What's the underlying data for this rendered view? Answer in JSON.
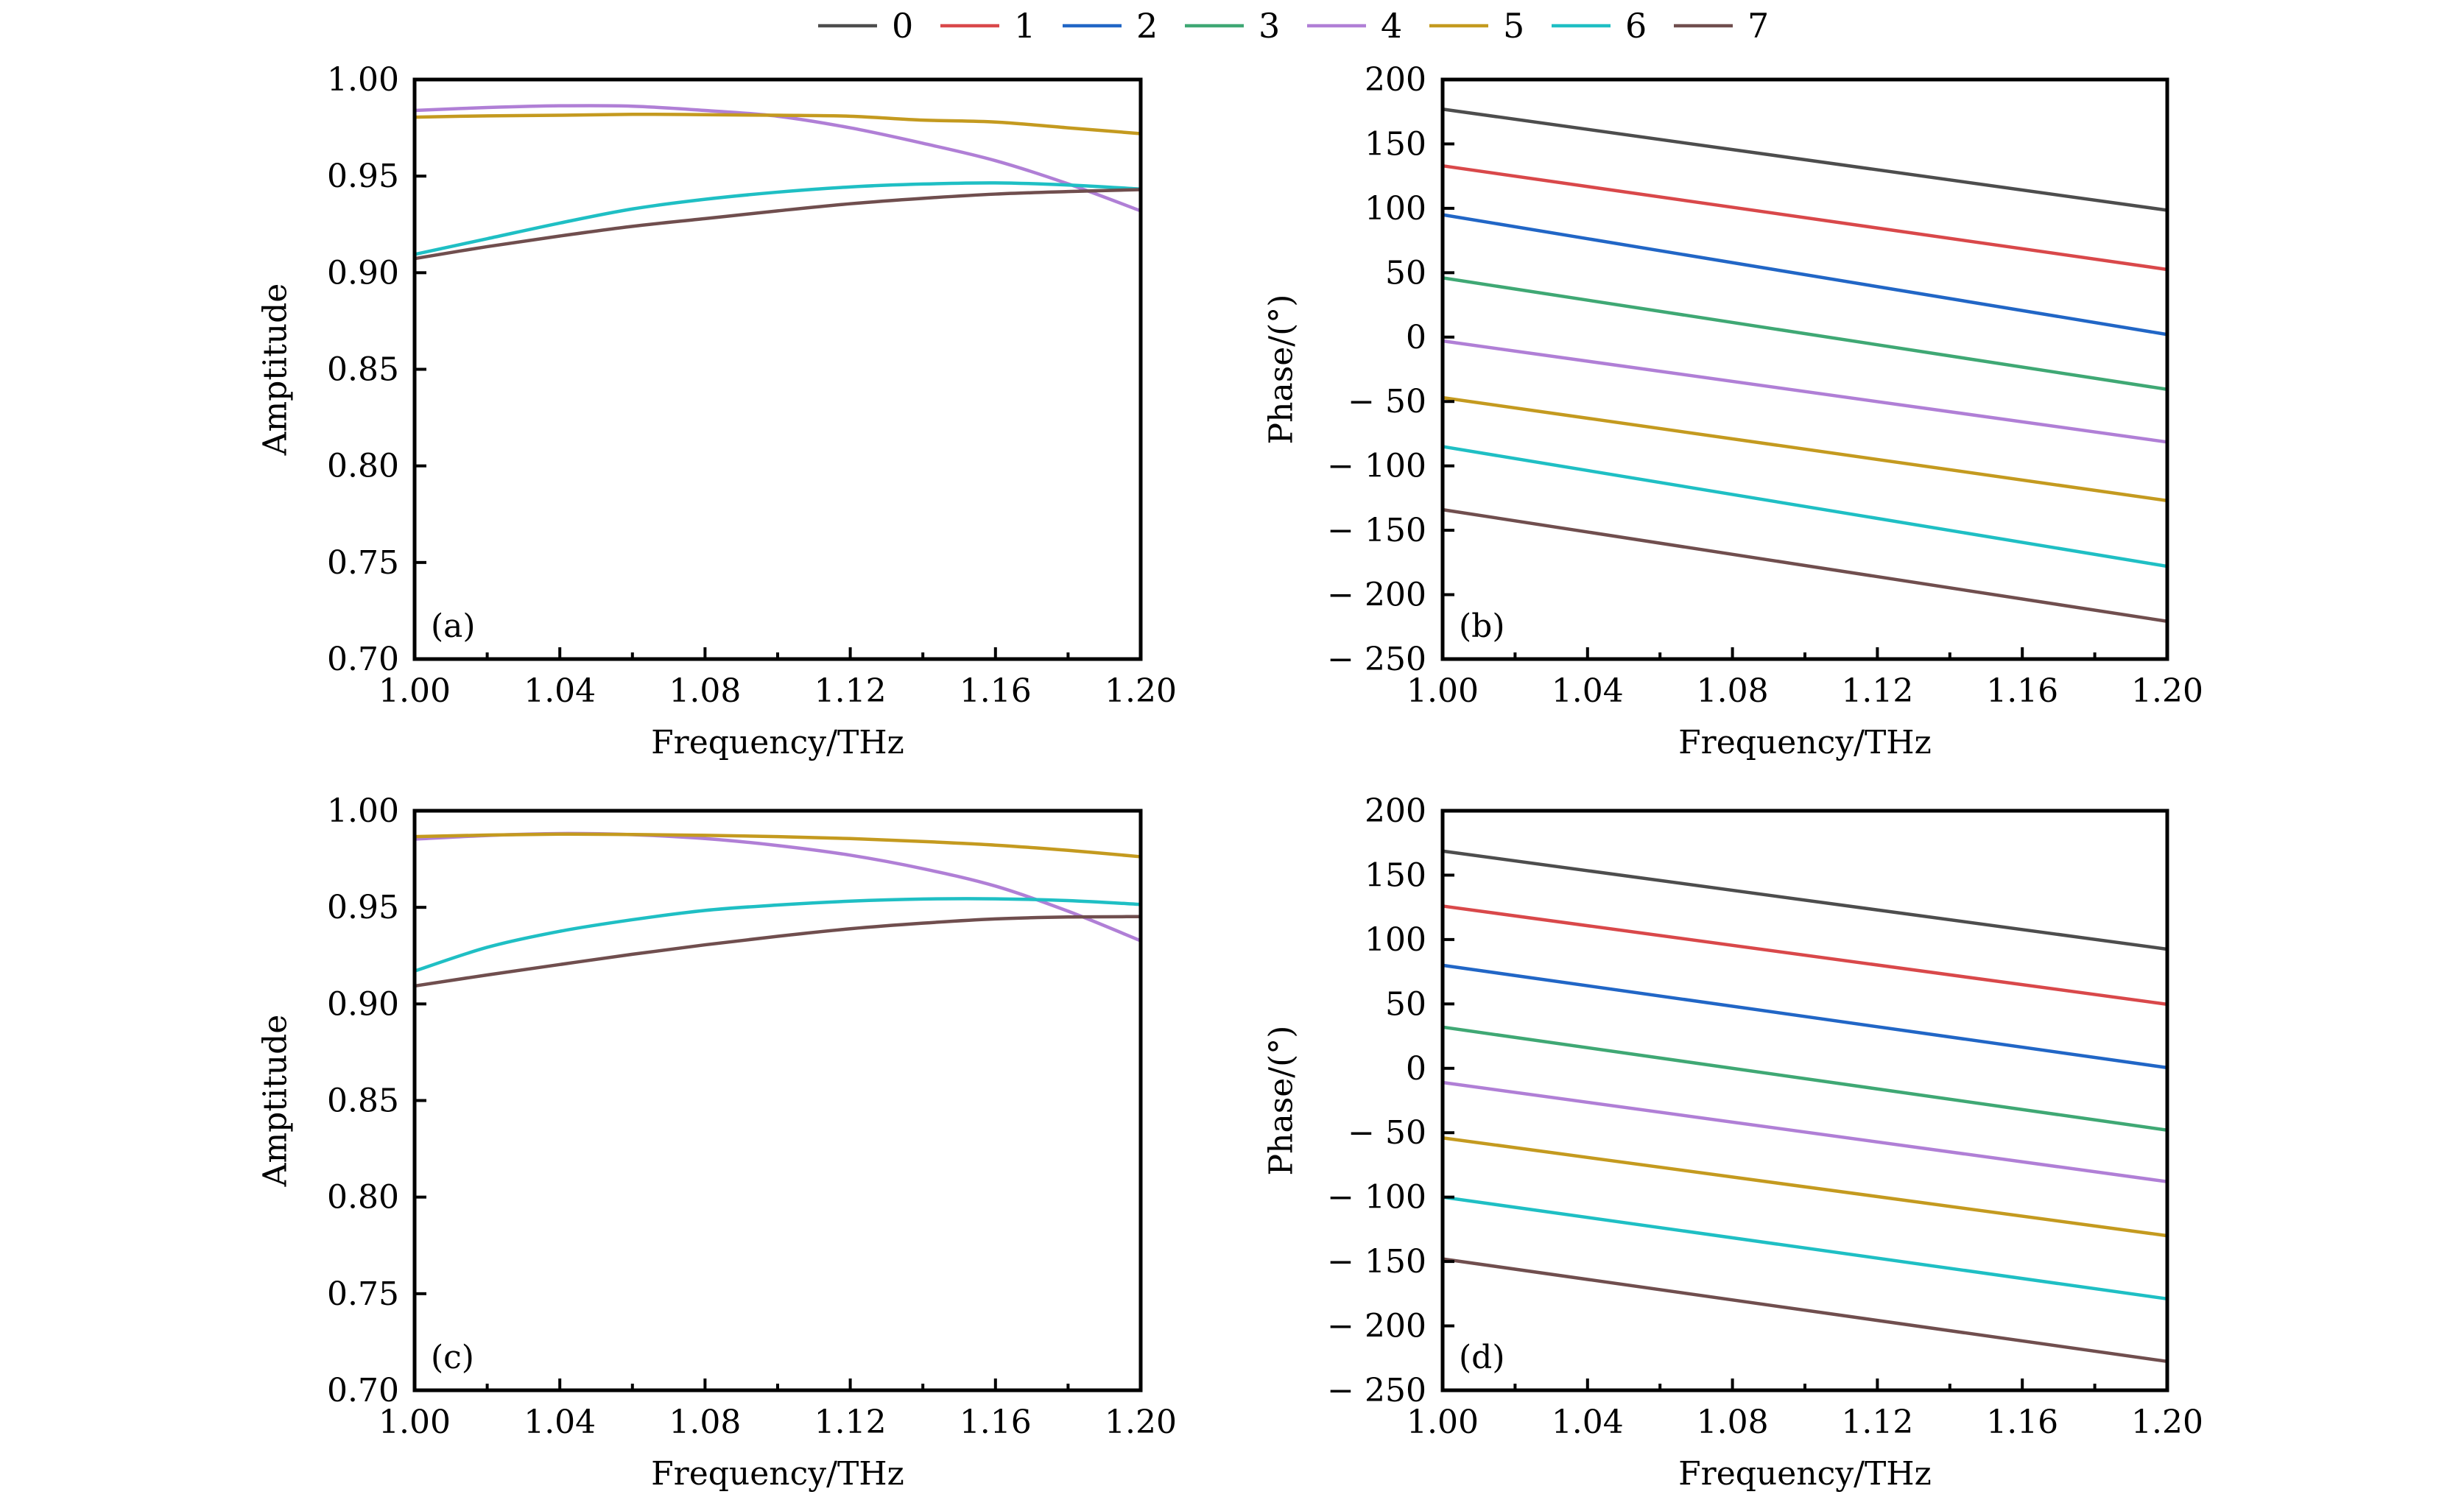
{
  "legend": {
    "items": [
      {
        "label": "0",
        "color": "#4d4d4d"
      },
      {
        "label": "1",
        "color": "#d9484a"
      },
      {
        "label": "2",
        "color": "#2166c6"
      },
      {
        "label": "3",
        "color": "#3fa874"
      },
      {
        "label": "4",
        "color": "#b07fd6"
      },
      {
        "label": "5",
        "color": "#c49a1f"
      },
      {
        "label": "6",
        "color": "#1fbfc4"
      },
      {
        "label": "7",
        "color": "#704e4e"
      }
    ],
    "placement": "top-center"
  },
  "chart_data": [
    {
      "id": "a",
      "panel_label": "(a)",
      "type": "line",
      "xlabel": "Frequency/THz",
      "ylabel": "Amptitude",
      "xlim": [
        1.0,
        1.2
      ],
      "ylim": [
        0.7,
        1.0
      ],
      "xticks": [
        "1.00",
        "1.04",
        "1.08",
        "1.12",
        "1.16",
        "1.20"
      ],
      "xtick_values": [
        1.0,
        1.04,
        1.08,
        1.12,
        1.16,
        1.2
      ],
      "x_minor_ticks": [
        1.02,
        1.06,
        1.1,
        1.14,
        1.18
      ],
      "yticks": [
        "0.70",
        "0.75",
        "0.80",
        "0.85",
        "0.90",
        "0.95",
        "1.00"
      ],
      "ytick_values": [
        0.7,
        0.75,
        0.8,
        0.85,
        0.9,
        0.95,
        1.0
      ],
      "grid": false,
      "x": [
        1.0,
        1.02,
        1.04,
        1.06,
        1.08,
        1.1,
        1.12,
        1.14,
        1.16,
        1.18,
        1.2
      ],
      "series": [
        {
          "name": "4",
          "values": [
            0.984,
            0.9855,
            0.9864,
            0.9862,
            0.984,
            0.981,
            0.975,
            0.967,
            0.958,
            0.946,
            0.932
          ]
        },
        {
          "name": "5",
          "values": [
            0.9805,
            0.9812,
            0.9815,
            0.982,
            0.9818,
            0.9815,
            0.981,
            0.979,
            0.978,
            0.975,
            0.972
          ]
        },
        {
          "name": "6",
          "values": [
            0.9095,
            0.9176,
            0.9257,
            0.933,
            0.938,
            0.9417,
            0.9444,
            0.9459,
            0.9465,
            0.9454,
            0.9433
          ]
        },
        {
          "name": "7",
          "values": [
            0.9073,
            0.9135,
            0.919,
            0.924,
            0.928,
            0.932,
            0.9357,
            0.9385,
            0.9407,
            0.942,
            0.943
          ]
        }
      ]
    },
    {
      "id": "b",
      "panel_label": "(b)",
      "type": "line",
      "xlabel": "Frequency/THz",
      "ylabel": "Phase/(°)",
      "xlim": [
        1.0,
        1.2
      ],
      "ylim": [
        -250,
        200
      ],
      "xticks": [
        "1.00",
        "1.04",
        "1.08",
        "1.12",
        "1.16",
        "1.20"
      ],
      "xtick_values": [
        1.0,
        1.04,
        1.08,
        1.12,
        1.16,
        1.2
      ],
      "x_minor_ticks": [
        1.02,
        1.06,
        1.1,
        1.14,
        1.18
      ],
      "yticks": [
        "− 250",
        "− 200",
        "− 150",
        "− 100",
        "− 50",
        "0",
        "50",
        "100",
        "150",
        "200"
      ],
      "ytick_values": [
        -250,
        -200,
        -150,
        -100,
        -50,
        0,
        50,
        100,
        150,
        200
      ],
      "grid": false,
      "x": [
        1.0,
        1.2
      ],
      "series": [
        {
          "name": "0",
          "values": [
            177,
            98.5
          ]
        },
        {
          "name": "1",
          "values": [
            133,
            52.5
          ]
        },
        {
          "name": "2",
          "values": [
            95,
            2
          ]
        },
        {
          "name": "3",
          "values": [
            46,
            -40.6
          ]
        },
        {
          "name": "4",
          "values": [
            -3,
            -81.5
          ]
        },
        {
          "name": "5",
          "values": [
            -47,
            -127
          ]
        },
        {
          "name": "6",
          "values": [
            -85,
            -178
          ]
        },
        {
          "name": "7",
          "values": [
            -134,
            -220.7
          ]
        }
      ]
    },
    {
      "id": "c",
      "panel_label": "(c)",
      "type": "line",
      "xlabel": "Frequency/THz",
      "ylabel": "Amptitude",
      "xlim": [
        1.0,
        1.2
      ],
      "ylim": [
        0.7,
        1.0
      ],
      "xticks": [
        "1.00",
        "1.04",
        "1.08",
        "1.12",
        "1.16",
        "1.20"
      ],
      "xtick_values": [
        1.0,
        1.04,
        1.08,
        1.12,
        1.16,
        1.2
      ],
      "x_minor_ticks": [
        1.02,
        1.06,
        1.1,
        1.14,
        1.18
      ],
      "yticks": [
        "0.70",
        "0.75",
        "0.80",
        "0.85",
        "0.90",
        "0.95",
        "1.00"
      ],
      "ytick_values": [
        0.7,
        0.75,
        0.8,
        0.85,
        0.9,
        0.95,
        1.0
      ],
      "grid": false,
      "x": [
        1.0,
        1.02,
        1.04,
        1.06,
        1.08,
        1.1,
        1.12,
        1.14,
        1.16,
        1.18,
        1.2
      ],
      "series": [
        {
          "name": "4",
          "values": [
            0.9853,
            0.9872,
            0.9882,
            0.9876,
            0.9856,
            0.982,
            0.977,
            0.97,
            0.961,
            0.948,
            0.9327
          ]
        },
        {
          "name": "5",
          "values": [
            0.9866,
            0.9874,
            0.9879,
            0.9877,
            0.9873,
            0.9866,
            0.9856,
            0.9841,
            0.9822,
            0.9795,
            0.9762
          ]
        },
        {
          "name": "6",
          "values": [
            0.917,
            0.9293,
            0.9376,
            0.9436,
            0.9484,
            0.9512,
            0.9532,
            0.9543,
            0.9544,
            0.9535,
            0.9515
          ]
        },
        {
          "name": "7",
          "values": [
            0.9093,
            0.915,
            0.9204,
            0.9257,
            0.9306,
            0.935,
            0.9389,
            0.9418,
            0.944,
            0.945,
            0.9452
          ]
        }
      ]
    },
    {
      "id": "d",
      "panel_label": "(d)",
      "type": "line",
      "xlabel": "Frequency/THz",
      "ylabel": "Phase/(°)",
      "xlim": [
        1.0,
        1.2
      ],
      "ylim": [
        -250,
        200
      ],
      "xticks": [
        "1.00",
        "1.04",
        "1.08",
        "1.12",
        "1.16",
        "1.20"
      ],
      "xtick_values": [
        1.0,
        1.04,
        1.08,
        1.12,
        1.16,
        1.2
      ],
      "x_minor_ticks": [
        1.02,
        1.06,
        1.1,
        1.14,
        1.18
      ],
      "yticks": [
        "− 250",
        "− 200",
        "− 150",
        "− 100",
        "− 50",
        "0",
        "50",
        "100",
        "150",
        "200"
      ],
      "ytick_values": [
        -250,
        -200,
        -150,
        -100,
        -50,
        0,
        50,
        100,
        150,
        200
      ],
      "grid": false,
      "x": [
        1.0,
        1.2
      ],
      "series": [
        {
          "name": "0",
          "values": [
            168.7,
            92.5
          ]
        },
        {
          "name": "1",
          "values": [
            126,
            49.7
          ]
        },
        {
          "name": "2",
          "values": [
            80,
            0.5
          ]
        },
        {
          "name": "3",
          "values": [
            32,
            -48
          ]
        },
        {
          "name": "4",
          "values": [
            -11,
            -88
          ]
        },
        {
          "name": "5",
          "values": [
            -54,
            -130
          ]
        },
        {
          "name": "6",
          "values": [
            -100,
            -179
          ]
        },
        {
          "name": "7",
          "values": [
            -148,
            -227.6
          ]
        }
      ]
    }
  ]
}
